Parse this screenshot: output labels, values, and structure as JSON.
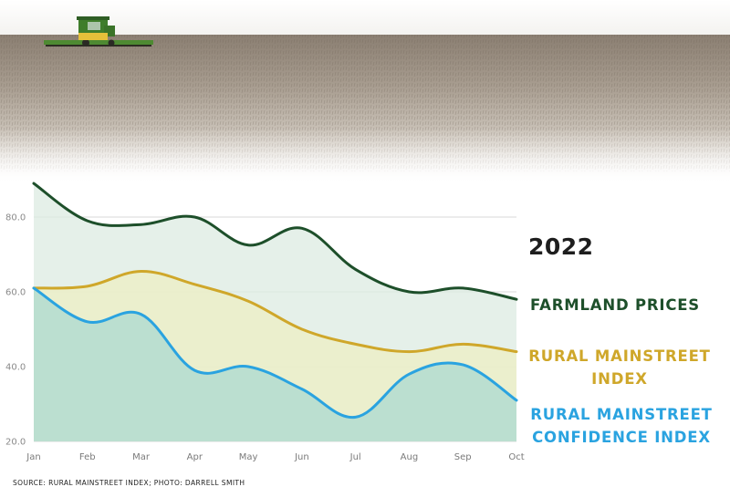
{
  "photo": {
    "description_icon": "combine-harvester-in-field-icon"
  },
  "year": "2022",
  "labels": {
    "farmland": "FARMLAND PRICES",
    "rural_line1": "RURAL MAINSTREET",
    "rural_line2": "INDEX",
    "confidence_line1": "RURAL MAINSTREET",
    "confidence_line2": "CONFIDENCE INDEX"
  },
  "source": "SOURCE: RURAL MAINSTREET INDEX; PHOTO: DARRELL SMITH",
  "colors": {
    "farmland": "#1d4f2a",
    "rural": "#cfa72a",
    "confidence": "#2aa3e0",
    "farmland_fill": "#dcebe2",
    "rural_fill": "#eceec8",
    "confidence_fill": "#b8ddd0"
  },
  "chart_data": {
    "type": "area",
    "categories": [
      "Jan",
      "Feb",
      "Mar",
      "Apr",
      "May",
      "Jun",
      "Jul",
      "Aug",
      "Sep",
      "Oct"
    ],
    "ylim": [
      20,
      90
    ],
    "yticks": [
      "20.0",
      "40.0",
      "60.0",
      "80.0"
    ],
    "grid": true,
    "series": [
      {
        "name": "FARMLAND PRICES",
        "values": [
          89,
          79,
          78,
          80,
          72.5,
          77,
          66,
          60,
          61,
          58
        ]
      },
      {
        "name": "RURAL MAINSTREET INDEX",
        "values": [
          61,
          61.5,
          65.5,
          62,
          57.5,
          50,
          46,
          44,
          46,
          44
        ]
      },
      {
        "name": "RURAL MAINSTREET CONFIDENCE INDEX",
        "values": [
          61,
          52,
          54,
          39,
          40,
          34,
          26.5,
          38,
          40.5,
          31
        ]
      }
    ]
  }
}
